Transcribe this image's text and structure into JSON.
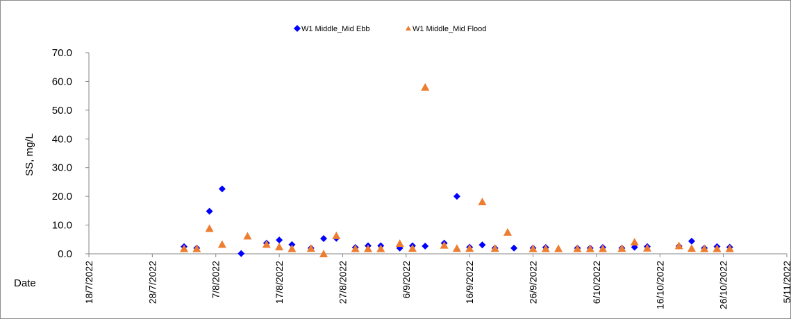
{
  "chart_data": {
    "type": "scatter",
    "title": "",
    "xlabel": "Date",
    "ylabel": "SS, mg/L",
    "ylim": [
      0,
      70
    ],
    "y_ticks": [
      "0.0",
      "10.0",
      "20.0",
      "30.0",
      "40.0",
      "50.0",
      "60.0",
      "70.0"
    ],
    "x_range": [
      "2022-07-18",
      "2022-11-05"
    ],
    "x_ticks": [
      "18/7/2022",
      "28/7/2022",
      "7/8/2022",
      "17/8/2022",
      "27/8/2022",
      "6/9/2022",
      "16/9/2022",
      "26/9/2022",
      "6/10/2022",
      "16/10/2022",
      "26/10/2022",
      "5/11/2022"
    ],
    "grid": false,
    "legend_position": "top",
    "series": [
      {
        "name": "W1 Middle_Mid Ebb",
        "marker": "diamond",
        "color": "#0000ff",
        "points": [
          [
            "2022-08-02",
            2.5
          ],
          [
            "2022-08-04",
            2.0
          ],
          [
            "2022-08-06",
            14.8
          ],
          [
            "2022-08-08",
            22.6
          ],
          [
            "2022-08-11",
            0.1
          ],
          [
            "2022-08-15",
            3.7
          ],
          [
            "2022-08-17",
            4.8
          ],
          [
            "2022-08-19",
            3.2
          ],
          [
            "2022-08-22",
            2.0
          ],
          [
            "2022-08-24",
            5.3
          ],
          [
            "2022-08-26",
            5.4
          ],
          [
            "2022-08-29",
            2.2
          ],
          [
            "2022-08-31",
            2.8
          ],
          [
            "2022-09-02",
            2.8
          ],
          [
            "2022-09-05",
            2.0
          ],
          [
            "2022-09-07",
            2.8
          ],
          [
            "2022-09-09",
            2.7
          ],
          [
            "2022-09-12",
            3.7
          ],
          [
            "2022-09-14",
            20.0
          ],
          [
            "2022-09-16",
            2.3
          ],
          [
            "2022-09-18",
            3.1
          ],
          [
            "2022-09-20",
            2.0
          ],
          [
            "2022-09-23",
            2.0
          ],
          [
            "2022-09-26",
            2.0
          ],
          [
            "2022-09-28",
            2.2
          ],
          [
            "2022-10-03",
            2.0
          ],
          [
            "2022-10-05",
            2.0
          ],
          [
            "2022-10-07",
            2.2
          ],
          [
            "2022-10-10",
            2.0
          ],
          [
            "2022-10-12",
            2.3
          ],
          [
            "2022-10-14",
            2.5
          ],
          [
            "2022-10-19",
            2.7
          ],
          [
            "2022-10-21",
            4.4
          ],
          [
            "2022-10-23",
            2.0
          ],
          [
            "2022-10-25",
            2.5
          ],
          [
            "2022-10-27",
            2.3
          ]
        ]
      },
      {
        "name": "W1 Middle_Mid Flood",
        "marker": "triangle",
        "color": "#ed7d31",
        "points": [
          [
            "2022-08-02",
            1.8
          ],
          [
            "2022-08-04",
            1.8
          ],
          [
            "2022-08-06",
            8.8
          ],
          [
            "2022-08-08",
            3.3
          ],
          [
            "2022-08-12",
            6.2
          ],
          [
            "2022-08-15",
            3.3
          ],
          [
            "2022-08-17",
            2.4
          ],
          [
            "2022-08-19",
            1.8
          ],
          [
            "2022-08-22",
            1.9
          ],
          [
            "2022-08-24",
            0.0
          ],
          [
            "2022-08-26",
            6.3
          ],
          [
            "2022-08-29",
            1.8
          ],
          [
            "2022-08-31",
            1.8
          ],
          [
            "2022-09-02",
            1.8
          ],
          [
            "2022-09-05",
            3.6
          ],
          [
            "2022-09-07",
            1.9
          ],
          [
            "2022-09-09",
            58.0
          ],
          [
            "2022-09-12",
            3.0
          ],
          [
            "2022-09-14",
            1.9
          ],
          [
            "2022-09-16",
            1.9
          ],
          [
            "2022-09-18",
            18.1
          ],
          [
            "2022-09-20",
            1.9
          ],
          [
            "2022-09-22",
            7.5
          ],
          [
            "2022-09-26",
            1.8
          ],
          [
            "2022-09-28",
            1.8
          ],
          [
            "2022-09-30",
            1.8
          ],
          [
            "2022-10-03",
            1.8
          ],
          [
            "2022-10-05",
            1.8
          ],
          [
            "2022-10-07",
            1.8
          ],
          [
            "2022-10-10",
            1.9
          ],
          [
            "2022-10-12",
            4.1
          ],
          [
            "2022-10-14",
            2.0
          ],
          [
            "2022-10-19",
            2.8
          ],
          [
            "2022-10-21",
            1.9
          ],
          [
            "2022-10-23",
            1.8
          ],
          [
            "2022-10-25",
            1.8
          ],
          [
            "2022-10-27",
            1.8
          ]
        ]
      }
    ]
  }
}
